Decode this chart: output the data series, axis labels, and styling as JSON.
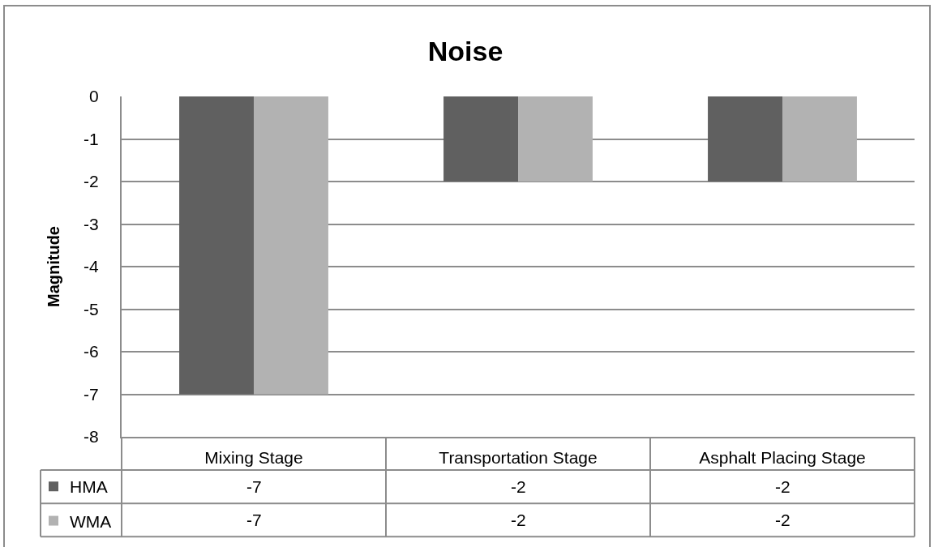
{
  "chart_data": {
    "type": "bar",
    "title": "Noise",
    "ylabel": "Magnitude",
    "categories": [
      "Mixing Stage",
      "Transportation Stage",
      "Asphalt Placing Stage"
    ],
    "series": [
      {
        "name": "HMA",
        "color": "#606060",
        "values": [
          -7,
          -2,
          -2
        ]
      },
      {
        "name": "WMA",
        "color": "#b2b2b2",
        "values": [
          -7,
          -2,
          -2
        ]
      }
    ],
    "ylim": [
      -8,
      0
    ],
    "yticks": [
      -8,
      -7,
      -6,
      -5,
      -4,
      -3,
      -2,
      -1,
      0
    ],
    "grid": "y",
    "legend": "bottom left",
    "data_labels": true
  }
}
